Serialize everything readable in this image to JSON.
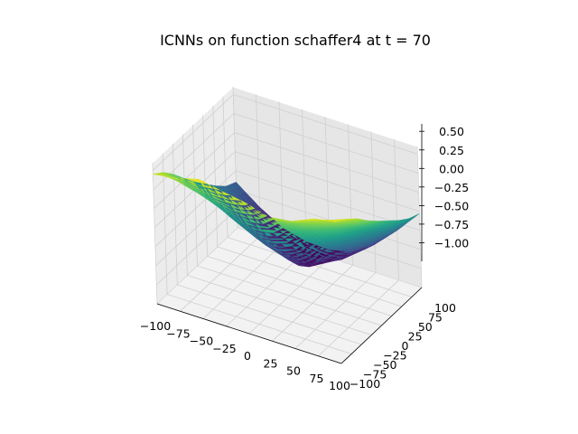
{
  "chart_data": {
    "type": "surface3d",
    "title": "ICNNs on function schaffer4 at t = 70",
    "xlabel": "",
    "ylabel": "",
    "zlabel": "",
    "colormap": "viridis",
    "grid": true,
    "xlim": [
      -100,
      100
    ],
    "ylim": [
      -100,
      100
    ],
    "zlim": [
      -1.25,
      0.6
    ],
    "x_ticks": [
      "−100",
      "−75",
      "−50",
      "−25",
      "0",
      "25",
      "50",
      "75",
      "100"
    ],
    "y_ticks": [
      "−100",
      "−75",
      "−50",
      "−25",
      "0",
      "25",
      "50",
      "75",
      "100"
    ],
    "z_ticks": [
      "−1.00",
      "−0.75",
      "−0.50",
      "−0.25",
      "0.00",
      "0.25",
      "0.50"
    ],
    "x_tick_values": [
      -100,
      -75,
      -50,
      -25,
      0,
      25,
      50,
      75,
      100
    ],
    "y_tick_values": [
      -100,
      -75,
      -50,
      -25,
      0,
      25,
      50,
      75,
      100
    ],
    "z_tick_values": [
      -1.0,
      -0.75,
      -0.5,
      -0.25,
      0.0,
      0.25,
      0.5
    ],
    "surface": {
      "x": [
        -100,
        -75,
        -50,
        -25,
        0,
        25,
        50,
        75,
        100
      ],
      "y": [
        -100,
        -75,
        -50,
        -25,
        0,
        25,
        50,
        75,
        100
      ],
      "z": [
        [
          0.45,
          0.5,
          0.58,
          0.52,
          0.47,
          0.38,
          0.42,
          0.55,
          0.6
        ],
        [
          0.35,
          0.26,
          0.22,
          0.18,
          0.12,
          0.16,
          0.26,
          0.4,
          0.52
        ],
        [
          0.2,
          0.06,
          -0.05,
          -0.18,
          -0.22,
          -0.12,
          0.05,
          0.22,
          0.4
        ],
        [
          0.02,
          -0.12,
          -0.3,
          -0.45,
          -0.52,
          -0.42,
          -0.18,
          0.05,
          0.25
        ],
        [
          -0.15,
          -0.32,
          -0.5,
          -0.68,
          -0.78,
          -0.62,
          -0.38,
          -0.1,
          0.12
        ],
        [
          -0.3,
          -0.5,
          -0.7,
          -0.88,
          -0.98,
          -0.8,
          -0.55,
          -0.25,
          0.0
        ],
        [
          -0.45,
          -0.66,
          -0.86,
          -1.02,
          -1.12,
          -0.95,
          -0.7,
          -0.4,
          -0.12
        ],
        [
          -0.58,
          -0.8,
          -1.0,
          -1.12,
          -1.18,
          -1.05,
          -0.82,
          -0.52,
          -0.22
        ],
        [
          -0.65,
          -0.88,
          -1.06,
          -1.14,
          -1.15,
          -1.08,
          -0.88,
          -0.6,
          -0.28
        ]
      ]
    }
  }
}
